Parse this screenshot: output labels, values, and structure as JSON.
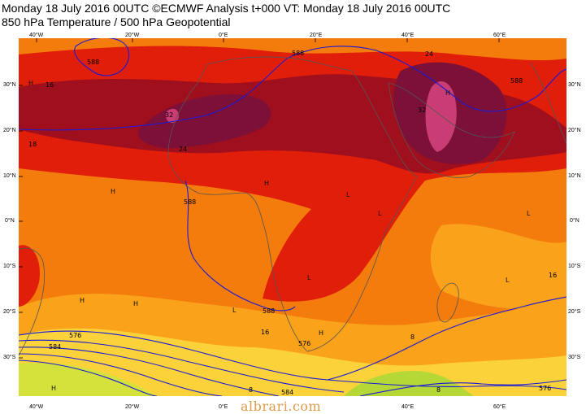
{
  "header": {
    "line1": "Monday 18 July 2016 00UTC ©ECMWF Analysis t+000 VT: Monday 18 July 2016 00UTC",
    "line2": "850 hPa Temperature / 500 hPa Geopotential"
  },
  "axes": {
    "lon_labels": [
      "40°W",
      "20°W",
      "0°E",
      "20°E",
      "40°E",
      "60°E"
    ],
    "lat_labels": [
      "30°N",
      "20°N",
      "10°N",
      "0°N",
      "10°S",
      "20°S",
      "30°S"
    ]
  },
  "contour_labels": [
    "588",
    "588",
    "588",
    "588",
    "588",
    "584",
    "576",
    "576",
    "576",
    "584"
  ],
  "temperature_labels": [
    "16",
    "24",
    "24",
    "32",
    "32",
    "16",
    "16",
    "8",
    "8",
    "8",
    "18"
  ],
  "pressure_markers": [
    "H",
    "H",
    "H",
    "H",
    "H",
    "L",
    "L",
    "L",
    "L",
    "L",
    "H",
    "H",
    "H",
    "L"
  ],
  "colors": {
    "ocean_land_warm": "#f47c0c",
    "hot": "#e01e0a",
    "very_hot": "#a00f1e",
    "extreme": "#7c1038",
    "peak": "#c93c74",
    "mild": "#f9a21a",
    "cool": "#fbd23a",
    "cold": "#b6d836",
    "geopotential": "#1a1ad6"
  },
  "watermark": "albrari.com"
}
